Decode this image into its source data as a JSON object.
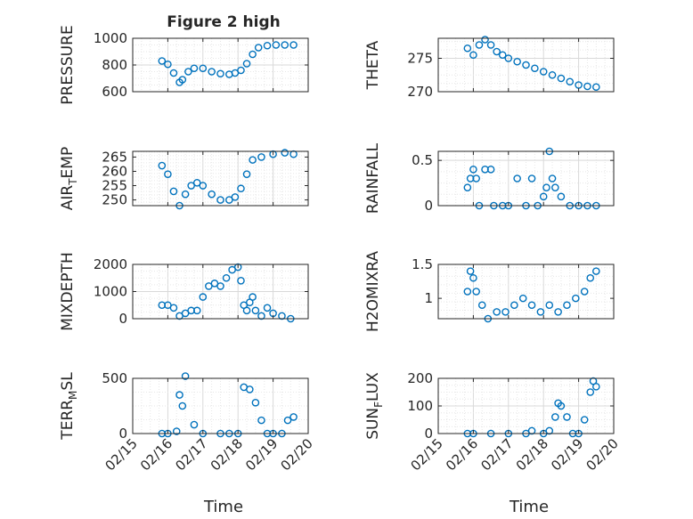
{
  "figure": {
    "title": "Figure 2 high",
    "xlabel": "Time",
    "xtick_labels": [
      "02/15",
      "02/16",
      "02/17",
      "02/18",
      "02/19",
      "02/20"
    ],
    "marker_color": "#0072BD"
  },
  "chart_data": [
    {
      "type": "scatter",
      "ylabel": "PRESSURE",
      "xlim": [
        "02/15",
        "02/20"
      ],
      "ylim": [
        600,
        1000
      ],
      "yticks": [
        600,
        800,
        1000
      ],
      "grid": true,
      "x": [
        "02/15 20:00",
        "02/16 00:00",
        "02/16 04:00",
        "02/16 08:00",
        "02/16 10:00",
        "02/16 14:00",
        "02/16 18:00",
        "02/17 00:00",
        "02/17 06:00",
        "02/17 12:00",
        "02/17 18:00",
        "02/17 22:00",
        "02/18 02:00",
        "02/18 06:00",
        "02/18 10:00",
        "02/18 14:00",
        "02/18 20:00",
        "02/19 02:00",
        "02/19 08:00",
        "02/19 14:00"
      ],
      "y": [
        830,
        805,
        740,
        670,
        690,
        750,
        775,
        775,
        750,
        735,
        730,
        740,
        760,
        810,
        880,
        930,
        945,
        950,
        950,
        950
      ]
    },
    {
      "type": "scatter",
      "ylabel": "THETA",
      "xlim": [
        "02/15",
        "02/20"
      ],
      "ylim": [
        270,
        278
      ],
      "yticks": [
        270,
        275
      ],
      "grid": true,
      "x": [
        "02/15 20:00",
        "02/16 00:00",
        "02/16 04:00",
        "02/16 08:00",
        "02/16 12:00",
        "02/16 16:00",
        "02/16 20:00",
        "02/17 00:00",
        "02/17 06:00",
        "02/17 12:00",
        "02/17 18:00",
        "02/18 00:00",
        "02/18 06:00",
        "02/18 12:00",
        "02/18 18:00",
        "02/19 00:00",
        "02/19 06:00",
        "02/19 12:00"
      ],
      "y": [
        276.5,
        275.5,
        277,
        277.8,
        277,
        276,
        275.5,
        275,
        274.5,
        274,
        273.5,
        273,
        272.5,
        272,
        271.5,
        271,
        270.8,
        270.7
      ]
    },
    {
      "type": "scatter",
      "ylabel": "AIR_TEMP",
      "xlim": [
        "02/15",
        "02/20"
      ],
      "ylim": [
        248,
        267
      ],
      "yticks": [
        250,
        255,
        260,
        265
      ],
      "grid": true,
      "x": [
        "02/15 20:00",
        "02/16 00:00",
        "02/16 04:00",
        "02/16 08:00",
        "02/16 12:00",
        "02/16 16:00",
        "02/16 20:00",
        "02/17 00:00",
        "02/17 06:00",
        "02/17 12:00",
        "02/17 18:00",
        "02/17 22:00",
        "02/18 02:00",
        "02/18 06:00",
        "02/18 10:00",
        "02/18 16:00",
        "02/19 00:00",
        "02/19 08:00",
        "02/19 14:00"
      ],
      "y": [
        262,
        259,
        253,
        248,
        252,
        255,
        256,
        255,
        252,
        250,
        250,
        251,
        254,
        259,
        264,
        265,
        266,
        266.5,
        266
      ]
    },
    {
      "type": "scatter",
      "ylabel": "RAINFALL",
      "xlim": [
        "02/15",
        "02/20"
      ],
      "ylim": [
        0,
        0.6
      ],
      "yticks": [
        0,
        0.5
      ],
      "grid": true,
      "x": [
        "02/15 20:00",
        "02/15 22:00",
        "02/16 00:00",
        "02/16 02:00",
        "02/16 04:00",
        "02/16 08:00",
        "02/16 12:00",
        "02/16 14:00",
        "02/16 20:00",
        "02/17 00:00",
        "02/17 06:00",
        "02/17 12:00",
        "02/17 16:00",
        "02/17 20:00",
        "02/18 00:00",
        "02/18 02:00",
        "02/18 04:00",
        "02/18 06:00",
        "02/18 08:00",
        "02/18 12:00",
        "02/18 18:00",
        "02/19 00:00",
        "02/19 06:00",
        "02/19 12:00"
      ],
      "y": [
        0.2,
        0.3,
        0.4,
        0.3,
        0,
        0.4,
        0.4,
        0,
        0,
        0,
        0.3,
        0,
        0.3,
        0,
        0.1,
        0.2,
        0.6,
        0.3,
        0.2,
        0.1,
        0,
        0,
        0,
        0
      ]
    },
    {
      "type": "scatter",
      "ylabel": "MIXDEPTH",
      "xlim": [
        "02/15",
        "02/20"
      ],
      "ylim": [
        0,
        2000
      ],
      "yticks": [
        0,
        1000,
        2000
      ],
      "grid": true,
      "x": [
        "02/15 20:00",
        "02/16 00:00",
        "02/16 04:00",
        "02/16 08:00",
        "02/16 12:00",
        "02/16 16:00",
        "02/16 20:00",
        "02/17 00:00",
        "02/17 04:00",
        "02/17 08:00",
        "02/17 12:00",
        "02/17 16:00",
        "02/17 20:00",
        "02/18 00:00",
        "02/18 02:00",
        "02/18 04:00",
        "02/18 06:00",
        "02/18 08:00",
        "02/18 10:00",
        "02/18 12:00",
        "02/18 16:00",
        "02/18 20:00",
        "02/19 00:00",
        "02/19 06:00",
        "02/19 12:00"
      ],
      "y": [
        500,
        500,
        400,
        100,
        200,
        300,
        300,
        800,
        1200,
        1300,
        1200,
        1500,
        1800,
        1900,
        1400,
        500,
        300,
        600,
        800,
        300,
        100,
        400,
        200,
        100,
        0
      ]
    },
    {
      "type": "scatter",
      "ylabel": "H2OMIXRA",
      "xlim": [
        "02/15",
        "02/20"
      ],
      "ylim": [
        0.7,
        1.5
      ],
      "yticks": [
        1,
        1.5
      ],
      "grid": true,
      "x": [
        "02/15 20:00",
        "02/15 22:00",
        "02/16 00:00",
        "02/16 02:00",
        "02/16 06:00",
        "02/16 10:00",
        "02/16 16:00",
        "02/16 22:00",
        "02/17 04:00",
        "02/17 10:00",
        "02/17 16:00",
        "02/17 22:00",
        "02/18 04:00",
        "02/18 10:00",
        "02/18 16:00",
        "02/18 22:00",
        "02/19 04:00",
        "02/19 08:00",
        "02/19 12:00"
      ],
      "y": [
        1.1,
        1.4,
        1.3,
        1.1,
        0.9,
        0.7,
        0.8,
        0.8,
        0.9,
        1.0,
        0.9,
        0.8,
        0.9,
        0.8,
        0.9,
        1.0,
        1.1,
        1.3,
        1.4
      ]
    },
    {
      "type": "scatter",
      "ylabel": "TERR_MSL",
      "xlim": [
        "02/15",
        "02/20"
      ],
      "ylim": [
        0,
        500
      ],
      "yticks": [
        0,
        500
      ],
      "grid": true,
      "x": [
        "02/15 20:00",
        "02/16 00:00",
        "02/16 06:00",
        "02/16 08:00",
        "02/16 10:00",
        "02/16 12:00",
        "02/16 18:00",
        "02/17 00:00",
        "02/17 12:00",
        "02/17 18:00",
        "02/18 00:00",
        "02/18 04:00",
        "02/18 08:00",
        "02/18 12:00",
        "02/18 16:00",
        "02/18 20:00",
        "02/19 00:00",
        "02/19 06:00",
        "02/19 10:00",
        "02/19 14:00"
      ],
      "y": [
        0,
        0,
        20,
        350,
        250,
        520,
        80,
        0,
        0,
        0,
        0,
        420,
        400,
        280,
        120,
        0,
        0,
        0,
        120,
        150
      ]
    },
    {
      "type": "scatter",
      "ylabel": "SUN_FLUX",
      "xlim": [
        "02/15",
        "02/20"
      ],
      "ylim": [
        0,
        200
      ],
      "yticks": [
        0,
        100,
        200
      ],
      "grid": true,
      "x": [
        "02/15 20:00",
        "02/16 00:00",
        "02/16 12:00",
        "02/17 00:00",
        "02/17 12:00",
        "02/17 16:00",
        "02/18 00:00",
        "02/18 04:00",
        "02/18 08:00",
        "02/18 10:00",
        "02/18 12:00",
        "02/18 16:00",
        "02/18 20:00",
        "02/19 00:00",
        "02/19 04:00",
        "02/19 08:00",
        "02/19 10:00",
        "02/19 12:00"
      ],
      "y": [
        0,
        0,
        0,
        0,
        0,
        10,
        0,
        10,
        60,
        110,
        100,
        60,
        0,
        0,
        50,
        150,
        190,
        170
      ]
    }
  ]
}
